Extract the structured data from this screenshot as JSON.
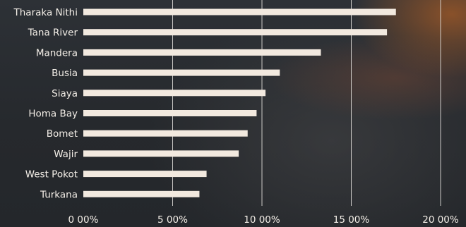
{
  "chart_data": {
    "type": "bar",
    "orientation": "horizontal",
    "categories": [
      "Tharaka Nithi",
      "Tana River",
      "Mandera",
      "Busia",
      "Siaya",
      "Homa Bay",
      "Bomet",
      "Wajir",
      "West Pokot",
      "Turkana"
    ],
    "values": [
      17.5,
      17.0,
      13.3,
      11.0,
      10.2,
      9.7,
      9.2,
      8.7,
      6.9,
      6.5
    ],
    "xlim": [
      0,
      20
    ],
    "x_ticks": [
      0,
      5,
      10,
      15,
      20
    ],
    "x_tick_labels": [
      "0 00%",
      "5 00%",
      "10 00%",
      "15 00%",
      "20 00%"
    ],
    "grid": "vertical",
    "colors": {
      "bar": "#f2e9df",
      "text": "#f4efe8",
      "grid": "#e9e6e2"
    }
  }
}
